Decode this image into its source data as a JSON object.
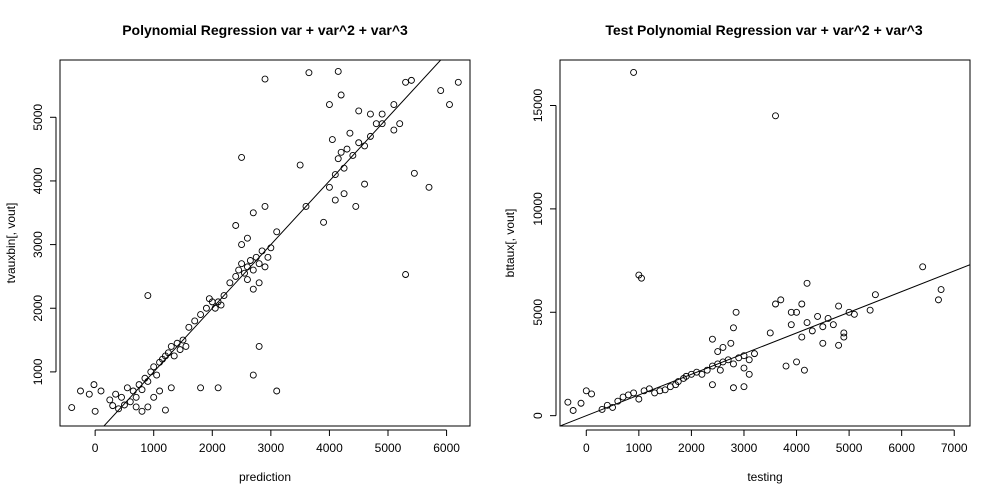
{
  "chart_data": [
    {
      "type": "scatter",
      "title": "Polynomial Regression var + var^2 + var^3",
      "xlabel": "prediction",
      "ylabel": "tvauxbin[, vout]",
      "xlim": [
        -600,
        6400
      ],
      "ylim": [
        150,
        5900
      ],
      "xticks": [
        0,
        1000,
        2000,
        3000,
        4000,
        5000,
        6000
      ],
      "yticks": [
        1000,
        2000,
        3000,
        4000,
        5000
      ],
      "fit_line": {
        "intercept": 0,
        "slope": 1
      },
      "marker": "open-circle",
      "series": [
        {
          "points": [
            [
              -400,
              440
            ],
            [
              -250,
              700
            ],
            [
              -100,
              650
            ],
            [
              -20,
              800
            ],
            [
              0,
              380
            ],
            [
              100,
              700
            ],
            [
              250,
              560
            ],
            [
              300,
              470
            ],
            [
              350,
              650
            ],
            [
              400,
              420
            ],
            [
              450,
              600
            ],
            [
              500,
              480
            ],
            [
              550,
              750
            ],
            [
              600,
              530
            ],
            [
              650,
              700
            ],
            [
              700,
              600
            ],
            [
              750,
              800
            ],
            [
              800,
              720
            ],
            [
              850,
              900
            ],
            [
              900,
              850
            ],
            [
              950,
              1000
            ],
            [
              1000,
              1080
            ],
            [
              1050,
              950
            ],
            [
              1100,
              1150
            ],
            [
              1150,
              1200
            ],
            [
              1200,
              1250
            ],
            [
              1250,
              1300
            ],
            [
              1300,
              1400
            ],
            [
              1350,
              1250
            ],
            [
              1400,
              1450
            ],
            [
              1450,
              1350
            ],
            [
              1500,
              1500
            ],
            [
              1550,
              1400
            ],
            [
              700,
              450
            ],
            [
              800,
              380
            ],
            [
              900,
              450
            ],
            [
              1000,
              600
            ],
            [
              1100,
              700
            ],
            [
              1200,
              400
            ],
            [
              1300,
              750
            ],
            [
              900,
              2200
            ],
            [
              1800,
              750
            ],
            [
              2100,
              750
            ],
            [
              1600,
              1700
            ],
            [
              1700,
              1800
            ],
            [
              1800,
              1900
            ],
            [
              1900,
              2000
            ],
            [
              2000,
              2100
            ],
            [
              2050,
              2000
            ],
            [
              2100,
              2100
            ],
            [
              2150,
              2050
            ],
            [
              2200,
              2200
            ],
            [
              1950,
              2150
            ],
            [
              2300,
              2400
            ],
            [
              2400,
              2500
            ],
            [
              2450,
              2600
            ],
            [
              2500,
              2700
            ],
            [
              2550,
              2550
            ],
            [
              2600,
              2650
            ],
            [
              2650,
              2750
            ],
            [
              2700,
              2600
            ],
            [
              2750,
              2800
            ],
            [
              2800,
              2700
            ],
            [
              2850,
              2900
            ],
            [
              2900,
              2650
            ],
            [
              2950,
              2800
            ],
            [
              3000,
              2950
            ],
            [
              2600,
              2450
            ],
            [
              2700,
              2300
            ],
            [
              2800,
              2400
            ],
            [
              2500,
              3000
            ],
            [
              2600,
              3100
            ],
            [
              2400,
              3300
            ],
            [
              2700,
              3500
            ],
            [
              2900,
              3600
            ],
            [
              3100,
              3200
            ],
            [
              2500,
              4370
            ],
            [
              2800,
              1400
            ],
            [
              3100,
              700
            ],
            [
              2700,
              950
            ],
            [
              3500,
              4250
            ],
            [
              3600,
              3600
            ],
            [
              3900,
              3350
            ],
            [
              4000,
              3900
            ],
            [
              4100,
              4100
            ],
            [
              4150,
              4350
            ],
            [
              4200,
              4450
            ],
            [
              4300,
              4500
            ],
            [
              4400,
              4400
            ],
            [
              4500,
              4600
            ],
            [
              4600,
              4550
            ],
            [
              4700,
              4700
            ],
            [
              4800,
              4900
            ],
            [
              4350,
              4750
            ],
            [
              4250,
              4200
            ],
            [
              4050,
              4650
            ],
            [
              4100,
              3700
            ],
            [
              4250,
              3800
            ],
            [
              4450,
              3600
            ],
            [
              4600,
              3950
            ],
            [
              4000,
              5200
            ],
            [
              4200,
              5350
            ],
            [
              4500,
              5100
            ],
            [
              4700,
              5050
            ],
            [
              4900,
              4900
            ],
            [
              5100,
              4800
            ],
            [
              5200,
              4900
            ],
            [
              3650,
              5700
            ],
            [
              4150,
              5720
            ],
            [
              2900,
              5600
            ],
            [
              5300,
              5550
            ],
            [
              5400,
              5580
            ],
            [
              5900,
              5420
            ],
            [
              6050,
              5200
            ],
            [
              6200,
              5550
            ],
            [
              5700,
              3900
            ],
            [
              5450,
              4120
            ],
            [
              5300,
              2530
            ],
            [
              5100,
              5200
            ],
            [
              4900,
              5050
            ]
          ]
        }
      ]
    },
    {
      "type": "scatter",
      "title": "Test Polynomial Regression var + var^2 + var^3",
      "xlabel": "testing",
      "ylabel": "bttaux[, vout]",
      "xlim": [
        -500,
        7300
      ],
      "ylim": [
        -500,
        17200
      ],
      "xticks": [
        0,
        1000,
        2000,
        3000,
        4000,
        5000,
        6000,
        7000
      ],
      "yticks": [
        0,
        5000,
        10000,
        15000
      ],
      "fit_line": {
        "intercept": 0,
        "slope": 1
      },
      "marker": "open-circle",
      "series": [
        {
          "points": [
            [
              -350,
              650
            ],
            [
              -250,
              250
            ],
            [
              -100,
              600
            ],
            [
              0,
              1200
            ],
            [
              100,
              1050
            ],
            [
              300,
              300
            ],
            [
              400,
              500
            ],
            [
              500,
              400
            ],
            [
              600,
              700
            ],
            [
              700,
              900
            ],
            [
              800,
              1000
            ],
            [
              900,
              1100
            ],
            [
              1000,
              800
            ],
            [
              1100,
              1200
            ],
            [
              1200,
              1300
            ],
            [
              1300,
              1100
            ],
            [
              1400,
              1200
            ],
            [
              1500,
              1250
            ],
            [
              1600,
              1400
            ],
            [
              1700,
              1500
            ],
            [
              1750,
              1650
            ],
            [
              1850,
              1800
            ],
            [
              1900,
              1900
            ],
            [
              2000,
              2000
            ],
            [
              2100,
              2100
            ],
            [
              2200,
              2000
            ],
            [
              2300,
              2200
            ],
            [
              2400,
              2400
            ],
            [
              2500,
              2500
            ],
            [
              2600,
              2600
            ],
            [
              2700,
              2700
            ],
            [
              2800,
              2500
            ],
            [
              2900,
              2800
            ],
            [
              3000,
              2900
            ],
            [
              3100,
              2700
            ],
            [
              3200,
              3000
            ],
            [
              2500,
              3100
            ],
            [
              2600,
              3300
            ],
            [
              2750,
              3500
            ],
            [
              2400,
              3700
            ],
            [
              2550,
              2200
            ],
            [
              2400,
              1500
            ],
            [
              2800,
              1350
            ],
            [
              3000,
              1400
            ],
            [
              3100,
              2000
            ],
            [
              3000,
              2300
            ],
            [
              2850,
              5000
            ],
            [
              2800,
              4250
            ],
            [
              3500,
              4000
            ],
            [
              3600,
              5400
            ],
            [
              3700,
              5600
            ],
            [
              3900,
              4400
            ],
            [
              4000,
              5000
            ],
            [
              4100,
              3800
            ],
            [
              4200,
              4500
            ],
            [
              4300,
              4100
            ],
            [
              4400,
              4800
            ],
            [
              4500,
              4300
            ],
            [
              4600,
              4700
            ],
            [
              4700,
              4400
            ],
            [
              4800,
              5300
            ],
            [
              4900,
              4000
            ],
            [
              4200,
              6400
            ],
            [
              4100,
              5400
            ],
            [
              3800,
              2400
            ],
            [
              4000,
              2600
            ],
            [
              4150,
              2200
            ],
            [
              4500,
              3500
            ],
            [
              5000,
              5000
            ],
            [
              5100,
              4900
            ],
            [
              5400,
              5100
            ],
            [
              5500,
              5850
            ],
            [
              4900,
              3800
            ],
            [
              4800,
              3400
            ],
            [
              3900,
              5000
            ],
            [
              6400,
              7200
            ],
            [
              6700,
              5600
            ],
            [
              6750,
              6100
            ],
            [
              900,
              16600
            ],
            [
              1000,
              6800
            ],
            [
              1050,
              6650
            ],
            [
              3600,
              14500
            ]
          ]
        }
      ]
    }
  ]
}
